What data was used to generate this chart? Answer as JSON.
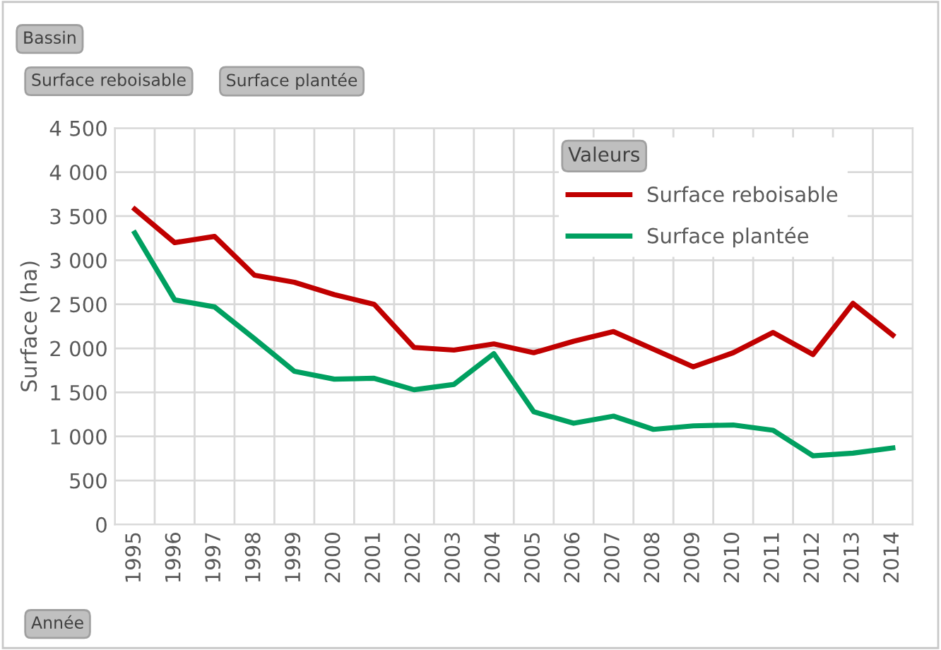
{
  "chart_data": {
    "type": "line",
    "ylabel": "Surface (ha)",
    "legend_title": "Valeurs",
    "categories": [
      "1995",
      "1996",
      "1997",
      "1998",
      "1999",
      "2000",
      "2001",
      "2002",
      "2003",
      "2004",
      "2005",
      "2006",
      "2007",
      "2008",
      "2009",
      "2010",
      "2011",
      "2012",
      "2013",
      "2014"
    ],
    "series": [
      {
        "name": "Surface reboisable",
        "color": "#c00000",
        "values": [
          3580,
          3200,
          3270,
          2830,
          2750,
          2610,
          2500,
          2010,
          1980,
          2050,
          1950,
          2080,
          2190,
          1990,
          1790,
          1950,
          2180,
          1930,
          2510,
          2150
        ]
      },
      {
        "name": "Surface plantée",
        "color": "#00a060",
        "values": [
          3310,
          2550,
          2470,
          2110,
          1740,
          1650,
          1660,
          1530,
          1590,
          1940,
          1280,
          1150,
          1230,
          1080,
          1120,
          1130,
          1070,
          780,
          810,
          870
        ]
      }
    ],
    "ylim": [
      0,
      4500
    ],
    "yticks": [
      0,
      500,
      {
        "value": 1000,
        "label": "1 000"
      },
      {
        "value": 1500,
        "label": "1 500"
      },
      {
        "value": 2000,
        "label": "2 000"
      },
      {
        "value": 2500,
        "label": "2 500"
      },
      {
        "value": 3000,
        "label": "3 000"
      },
      {
        "value": 3500,
        "label": "3 500"
      },
      {
        "value": 4000,
        "label": "4 000"
      },
      {
        "value": 4500,
        "label": "4 500"
      }
    ],
    "grid": true,
    "legend": "top right",
    "marker": "none",
    "line_style": "solid",
    "annotations": [
      "Bassin",
      "Surface reboisable",
      "Surface plantée",
      "Année"
    ]
  }
}
